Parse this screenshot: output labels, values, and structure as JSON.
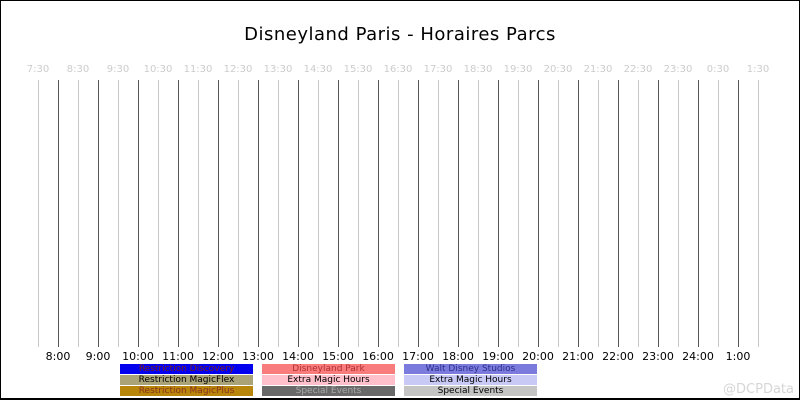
{
  "title": "Disneyland Paris - Horaires Parcs",
  "watermark": "@DCPData",
  "chart_data": {
    "type": "timeline",
    "title": "Disneyland Paris - Horaires Parcs",
    "grid": true,
    "x_range": [
      "7:30",
      "1:30"
    ],
    "top_axis_ticks": [
      "7:30",
      "8:30",
      "9:30",
      "10:30",
      "11:30",
      "12:30",
      "13:30",
      "14:30",
      "15:30",
      "16:30",
      "17:30",
      "18:30",
      "19:30",
      "20:30",
      "21:30",
      "22:30",
      "23:30",
      "0:30",
      "1:30"
    ],
    "bottom_axis_ticks": [
      "8:00",
      "9:00",
      "10:00",
      "11:00",
      "12:00",
      "13:00",
      "14:00",
      "15:00",
      "16:00",
      "17:00",
      "18:00",
      "19:00",
      "20:00",
      "21:00",
      "22:00",
      "23:00",
      "24:00",
      "1:00"
    ],
    "series": [],
    "legend_position": "bottom",
    "legend_columns": [
      {
        "items": [
          {
            "label": "Restriction Discovery",
            "bg": "#0000ee",
            "fg": "#7a2020"
          },
          {
            "label": "Restriction MagicFlex",
            "bg": "#a9a377",
            "fg": "#000000"
          },
          {
            "label": "Restriction MagicPlus",
            "bg": "#b8860b",
            "fg": "#8b3020"
          }
        ]
      },
      {
        "items": [
          {
            "label": "Disneyland Park",
            "bg": "#f87c7c",
            "fg": "#b23030"
          },
          {
            "label": "Extra Magic Hours",
            "bg": "#ffc0cb",
            "fg": "#000000"
          },
          {
            "label": "Special Events",
            "bg": "#696969",
            "fg": "#a8a8a8"
          }
        ]
      },
      {
        "items": [
          {
            "label": "Walt Disney Studios",
            "bg": "#7b7bde",
            "fg": "#2e2e8a"
          },
          {
            "label": "Extra Magic Hours",
            "bg": "#c9c9f5",
            "fg": "#000000"
          },
          {
            "label": "Special Events",
            "bg": "#c4c4c4",
            "fg": "#000000"
          }
        ]
      }
    ],
    "colors": {
      "grid_half_hour": "#c8c8c8",
      "grid_hour": "#555555",
      "top_tick_label": "#cccccc",
      "bottom_tick_label": "#000000"
    }
  }
}
